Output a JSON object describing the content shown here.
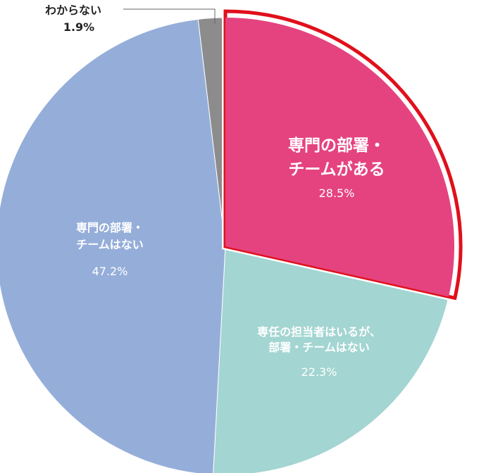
{
  "chart_data": {
    "type": "pie",
    "title": "",
    "slices": [
      {
        "label_lines": [
          "専門の部署・",
          "チームがある"
        ],
        "value": 28.5,
        "value_text": "28.5%",
        "color": "#e5437f",
        "highlighted": true
      },
      {
        "label_lines": [
          "専任の担当者はいるが、",
          "部署・チームはない"
        ],
        "value": 22.3,
        "value_text": "22.3%",
        "color": "#a3d5d2",
        "highlighted": false
      },
      {
        "label_lines": [
          "専門の部署・",
          "チームはない"
        ],
        "value": 47.2,
        "value_text": "47.2%",
        "color": "#95aed9",
        "highlighted": false
      },
      {
        "label_lines": [
          "わからない"
        ],
        "value": 1.9,
        "value_text": "1.9%",
        "color": "#8c8c8c",
        "highlighted": false
      }
    ],
    "highlight_color": "#e0101c",
    "start_angle": "12 o'clock",
    "direction": "clockwise",
    "legend": "none"
  }
}
